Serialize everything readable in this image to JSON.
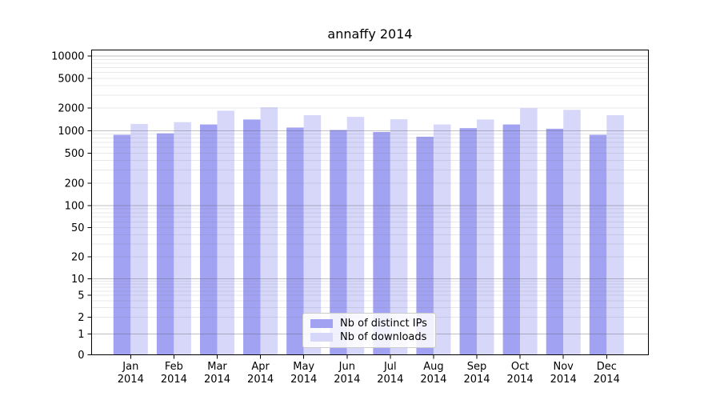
{
  "chart_data": {
    "type": "bar",
    "title": "annaffy 2014",
    "categories": [
      "Jan 2014",
      "Feb 2014",
      "Mar 2014",
      "Apr 2014",
      "May 2014",
      "Jun 2014",
      "Jul 2014",
      "Aug 2014",
      "Sep 2014",
      "Oct 2014",
      "Nov 2014",
      "Dec 2014"
    ],
    "series": [
      {
        "name": "Nb of distinct IPs",
        "color": "#a2a2f2",
        "values": [
          880,
          920,
          1210,
          1410,
          1100,
          1020,
          960,
          830,
          1080,
          1210,
          1060,
          880
        ]
      },
      {
        "name": "Nb of downloads",
        "color": "#d7d7f9",
        "values": [
          1230,
          1300,
          1850,
          2050,
          1610,
          1530,
          1420,
          1210,
          1410,
          2000,
          1900,
          1610
        ]
      }
    ],
    "yticks": [
      0,
      1,
      2,
      5,
      10,
      20,
      50,
      100,
      200,
      500,
      1000,
      2000,
      5000,
      10000
    ],
    "ylim": [
      0,
      10000
    ],
    "yscale": "log-with-zero",
    "grid": "horizontal major and minor log gridlines",
    "legend_position": "lower center",
    "axis_color": "#000000"
  }
}
